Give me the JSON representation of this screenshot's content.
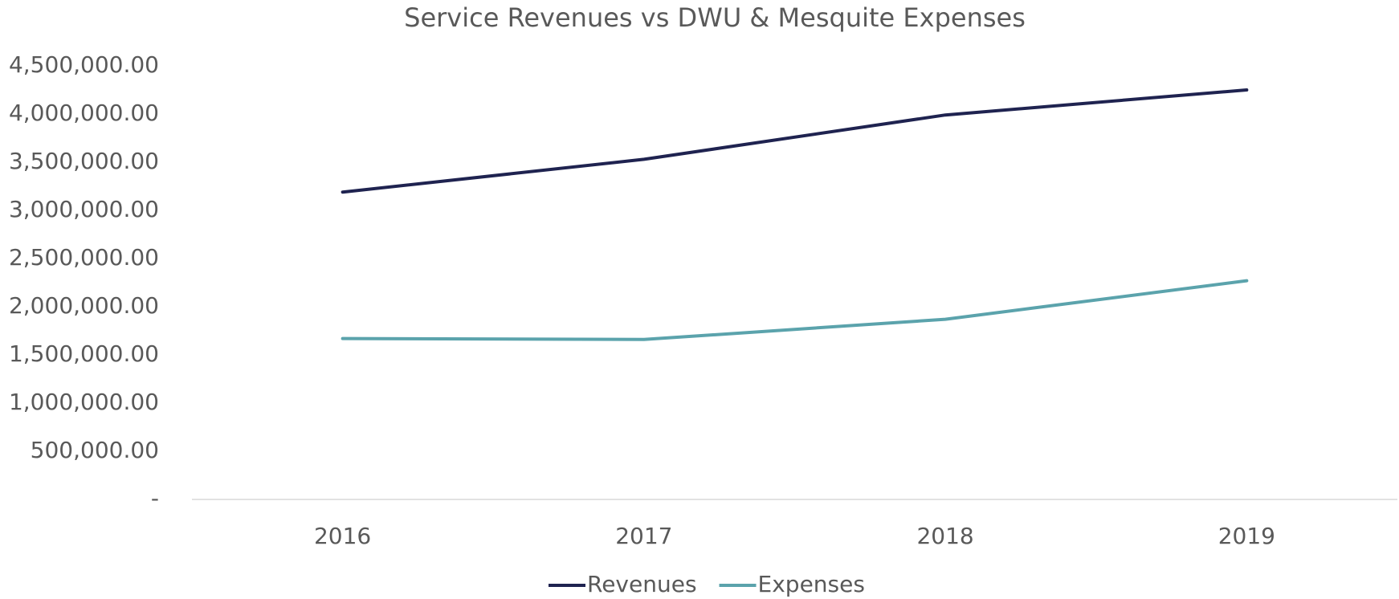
{
  "chart_data": {
    "type": "line",
    "title": "Service Revenues vs DWU & Mesquite Expenses",
    "categories": [
      "2016",
      "2017",
      "2018",
      "2019"
    ],
    "series": [
      {
        "name": "Revenues",
        "color": "#1f2350",
        "values": [
          3190000,
          3530000,
          3990000,
          4250000
        ]
      },
      {
        "name": "Expenses",
        "color": "#5ba3ac",
        "values": [
          1670000,
          1660000,
          1870000,
          2270000
        ]
      }
    ],
    "ylim": [
      0,
      4500000
    ],
    "yticks": [
      {
        "value": 0,
        "label": "-"
      },
      {
        "value": 500000,
        "label": "500,000.00"
      },
      {
        "value": 1000000,
        "label": "1,000,000.00"
      },
      {
        "value": 1500000,
        "label": "1,500,000.00"
      },
      {
        "value": 2000000,
        "label": "2,000,000.00"
      },
      {
        "value": 2500000,
        "label": "2,500,000.00"
      },
      {
        "value": 3000000,
        "label": "3,000,000.00"
      },
      {
        "value": 3500000,
        "label": "3,500,000.00"
      },
      {
        "value": 4000000,
        "label": "4,000,000.00"
      },
      {
        "value": 4500000,
        "label": "4,500,000.00"
      }
    ],
    "grid": false,
    "legend": "bottom"
  }
}
